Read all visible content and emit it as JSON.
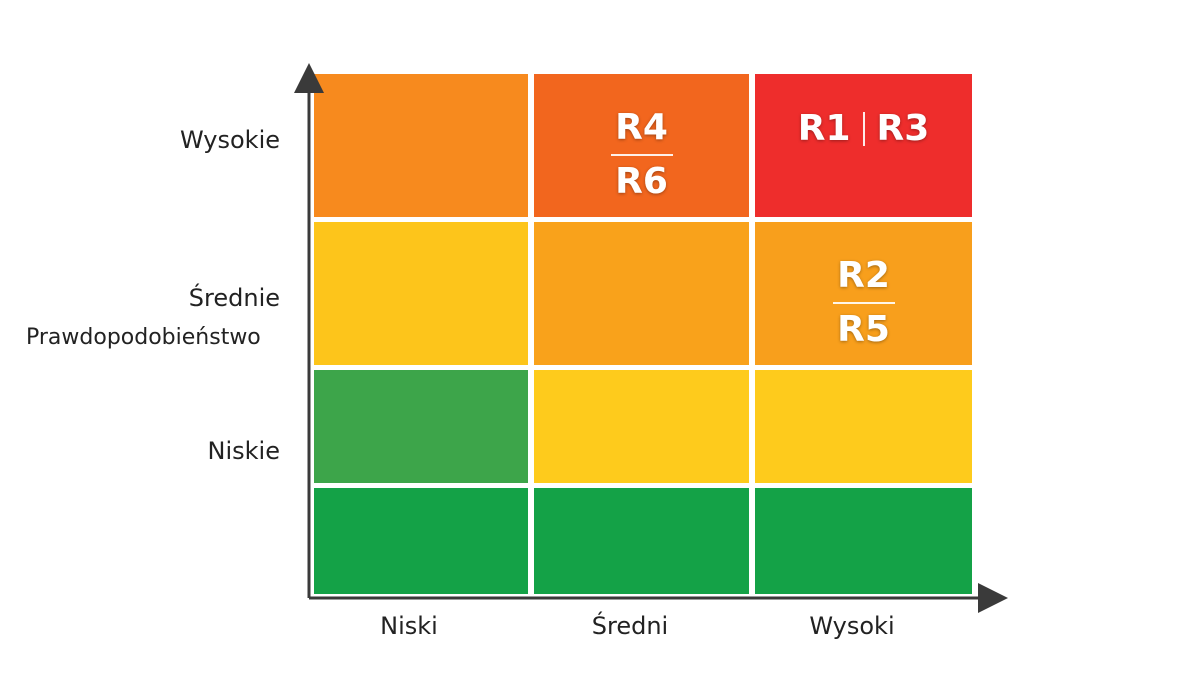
{
  "chart_data": {
    "type": "heatmap",
    "title": "",
    "ylabel": "Prawdopodobieństwo",
    "xlabel": "",
    "x_categories": [
      "Niski",
      "Średni",
      "Wysoki"
    ],
    "y_tick_labels": [
      "Wysokie",
      "Średnie",
      "Niskie"
    ],
    "grid": {
      "rows": 4,
      "cols": 3,
      "cells": [
        [
          {
            "color": "#f78a1e",
            "labels": []
          },
          {
            "color": "#f2661e",
            "labels": [
              "R4",
              "R6"
            ],
            "layout": "stacked"
          },
          {
            "color": "#ee2d2c",
            "labels": [
              "R1",
              "R3"
            ],
            "layout": "inline"
          }
        ],
        [
          {
            "color": "#fdc51b",
            "labels": []
          },
          {
            "color": "#f9a21b",
            "labels": []
          },
          {
            "color": "#f89f1c",
            "labels": [
              "R2",
              "R5"
            ],
            "layout": "stacked"
          }
        ],
        [
          {
            "color": "#3da54a",
            "labels": []
          },
          {
            "color": "#fecb1c",
            "labels": []
          },
          {
            "color": "#fecb1c",
            "labels": []
          }
        ],
        [
          {
            "color": "#14a247",
            "labels": []
          },
          {
            "color": "#14a247",
            "labels": []
          },
          {
            "color": "#14a247",
            "labels": []
          }
        ]
      ]
    },
    "axis_color": "#3a3a3a"
  }
}
